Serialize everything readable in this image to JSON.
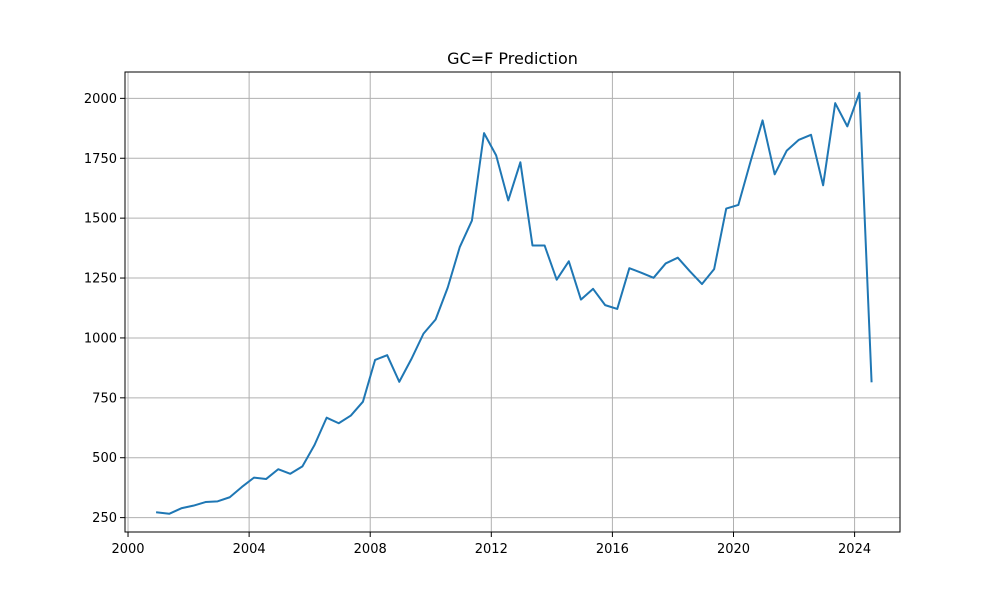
{
  "chart_data": {
    "type": "line",
    "title": "GC=F Prediction",
    "xlabel": "",
    "ylabel": "",
    "xlim": [
      1999.9,
      2025.5
    ],
    "ylim": [
      190,
      2110
    ],
    "grid": true,
    "legend": "none",
    "x_ticks": [
      2000,
      2004,
      2008,
      2012,
      2016,
      2020,
      2024
    ],
    "x_tick_labels": [
      "2000",
      "2004",
      "2008",
      "2012",
      "2016",
      "2020",
      "2024"
    ],
    "y_ticks": [
      250,
      500,
      750,
      1000,
      1250,
      1500,
      1750,
      2000
    ],
    "y_tick_labels": [
      "250",
      "500",
      "750",
      "1000",
      "1250",
      "1500",
      "1750",
      "2000"
    ],
    "series": [
      {
        "color": "#1f77b4",
        "x": [
          2000.96,
          2001.36,
          2001.76,
          2002.16,
          2002.56,
          2002.96,
          2003.36,
          2003.76,
          2004.16,
          2004.56,
          2004.96,
          2005.36,
          2005.76,
          2006.16,
          2006.56,
          2006.96,
          2007.36,
          2007.76,
          2008.16,
          2008.56,
          2008.96,
          2009.36,
          2009.76,
          2010.16,
          2010.56,
          2010.96,
          2011.36,
          2011.76,
          2012.16,
          2012.56,
          2012.96,
          2013.36,
          2013.76,
          2014.16,
          2014.56,
          2014.96,
          2015.36,
          2015.76,
          2016.16,
          2016.56,
          2016.96,
          2017.36,
          2017.76,
          2018.16,
          2018.56,
          2018.96,
          2019.36,
          2019.76,
          2020.16,
          2020.56,
          2020.96,
          2021.36,
          2021.76,
          2022.16,
          2022.56,
          2022.96,
          2023.36,
          2023.76,
          2024.16,
          2024.56
        ],
        "y": [
          272,
          266,
          289,
          300,
          315,
          318,
          335,
          378,
          417,
          411,
          452,
          433,
          464,
          553,
          667,
          644,
          676,
          734,
          908,
          928,
          817,
          912,
          1018,
          1077,
          1210,
          1380,
          1490,
          1855,
          1762,
          1574,
          1733,
          1386,
          1386,
          1243,
          1320,
          1160,
          1205,
          1137,
          1121,
          1291,
          1272,
          1251,
          1311,
          1335,
          1278,
          1225,
          1287,
          1540,
          1555,
          1735,
          1908,
          1683,
          1782,
          1827,
          1848,
          1637,
          1980,
          1883,
          2023,
          819
        ]
      }
    ]
  }
}
